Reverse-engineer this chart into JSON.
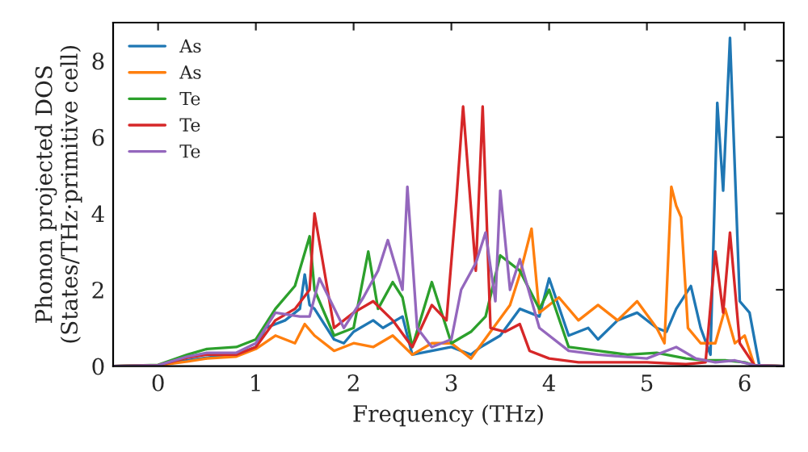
{
  "chart_data": {
    "type": "line",
    "xlabel": "Frequency (THz)",
    "ylabel": "Phonon projected DOS\n(States/THz·primitive cell)",
    "xlim": [
      -0.46,
      6.4
    ],
    "ylim": [
      0,
      9
    ],
    "xticks": [
      0,
      1,
      2,
      3,
      4,
      5,
      6
    ],
    "yticks": [
      0,
      2,
      4,
      6,
      8
    ],
    "legend": "top left",
    "grid": false,
    "series": [
      {
        "name": "As",
        "color": "#1f77b4",
        "x": [
          -0.46,
          0,
          0.3,
          0.5,
          0.8,
          1.0,
          1.1,
          1.3,
          1.45,
          1.5,
          1.55,
          1.6,
          1.8,
          1.9,
          2.0,
          2.2,
          2.3,
          2.5,
          2.6,
          2.8,
          3.0,
          3.2,
          3.3,
          3.5,
          3.7,
          3.9,
          4.0,
          4.2,
          4.4,
          4.5,
          4.7,
          4.9,
          5.1,
          5.2,
          5.3,
          5.45,
          5.55,
          5.65,
          5.72,
          5.78,
          5.85,
          5.95,
          6.05,
          6.15,
          6.4
        ],
        "values": [
          0,
          0.02,
          0.15,
          0.22,
          0.3,
          0.5,
          1.0,
          1.2,
          1.5,
          2.4,
          1.6,
          1.5,
          0.7,
          0.6,
          0.9,
          1.2,
          1.0,
          1.3,
          0.3,
          0.4,
          0.5,
          0.3,
          0.5,
          0.8,
          1.5,
          1.3,
          2.3,
          0.8,
          1.0,
          0.7,
          1.2,
          1.4,
          1.0,
          0.9,
          1.5,
          2.1,
          1.0,
          0.3,
          6.9,
          4.6,
          8.6,
          1.7,
          1.4,
          0.02,
          0
        ]
      },
      {
        "name": "As",
        "color": "#ff7f0e",
        "x": [
          -0.46,
          0,
          0.3,
          0.5,
          0.8,
          1.0,
          1.2,
          1.4,
          1.5,
          1.6,
          1.8,
          2.0,
          2.2,
          2.4,
          2.6,
          2.8,
          3.0,
          3.2,
          3.4,
          3.6,
          3.7,
          3.82,
          3.9,
          4.1,
          4.3,
          4.5,
          4.7,
          4.9,
          5.1,
          5.18,
          5.25,
          5.3,
          5.35,
          5.42,
          5.55,
          5.7,
          5.8,
          5.9,
          6.0,
          6.1,
          6.4
        ],
        "values": [
          0,
          0.02,
          0.12,
          0.2,
          0.25,
          0.45,
          0.8,
          0.6,
          1.1,
          0.8,
          0.4,
          0.6,
          0.5,
          0.8,
          0.3,
          0.6,
          0.6,
          0.2,
          0.9,
          1.6,
          2.4,
          3.6,
          1.4,
          1.8,
          1.2,
          1.6,
          1.2,
          1.7,
          1.0,
          0.6,
          4.7,
          4.2,
          3.9,
          1.0,
          0.6,
          0.6,
          1.5,
          0.6,
          0.8,
          0.02,
          0
        ]
      },
      {
        "name": "Te",
        "color": "#2ca02c",
        "x": [
          -0.46,
          0,
          0.3,
          0.5,
          0.8,
          1.0,
          1.2,
          1.4,
          1.55,
          1.6,
          1.8,
          2.0,
          2.15,
          2.25,
          2.4,
          2.5,
          2.6,
          2.8,
          3.0,
          3.2,
          3.35,
          3.5,
          3.7,
          3.9,
          4.0,
          4.2,
          4.5,
          4.8,
          5.1,
          5.4,
          5.6,
          5.8,
          6.0,
          6.1,
          6.4
        ],
        "values": [
          0,
          0.03,
          0.3,
          0.45,
          0.5,
          0.7,
          1.5,
          2.1,
          3.4,
          2.0,
          0.8,
          1.0,
          3.0,
          1.5,
          2.2,
          1.8,
          0.5,
          2.2,
          0.6,
          0.9,
          1.3,
          2.9,
          2.5,
          1.5,
          2.0,
          0.5,
          0.4,
          0.3,
          0.35,
          0.2,
          0.15,
          0.15,
          0.1,
          0.02,
          0
        ]
      },
      {
        "name": "Te",
        "color": "#d62728",
        "x": [
          -0.46,
          0,
          0.3,
          0.5,
          0.8,
          1.0,
          1.2,
          1.4,
          1.55,
          1.6,
          1.8,
          2.0,
          2.2,
          2.4,
          2.6,
          2.8,
          2.95,
          3.05,
          3.12,
          3.18,
          3.25,
          3.32,
          3.4,
          3.55,
          3.7,
          3.8,
          4.0,
          4.3,
          4.6,
          5.0,
          5.4,
          5.6,
          5.7,
          5.78,
          5.85,
          5.95,
          6.1,
          6.4
        ],
        "values": [
          0,
          0.02,
          0.22,
          0.3,
          0.3,
          0.5,
          1.2,
          1.5,
          2.0,
          4.0,
          1.0,
          1.4,
          1.7,
          1.2,
          0.5,
          1.6,
          1.2,
          4.3,
          6.8,
          4.8,
          2.5,
          6.8,
          1.0,
          0.9,
          1.1,
          0.4,
          0.2,
          0.1,
          0.1,
          0.1,
          0.05,
          0.1,
          3.0,
          1.4,
          3.5,
          0.6,
          0.02,
          0
        ]
      },
      {
        "name": "Te",
        "color": "#9467bd",
        "x": [
          -0.46,
          0,
          0.3,
          0.5,
          0.8,
          1.0,
          1.2,
          1.45,
          1.55,
          1.65,
          1.9,
          2.1,
          2.25,
          2.35,
          2.5,
          2.55,
          2.65,
          2.8,
          3.0,
          3.1,
          3.25,
          3.35,
          3.45,
          3.5,
          3.6,
          3.7,
          3.9,
          4.2,
          4.5,
          5.0,
          5.3,
          5.5,
          5.7,
          5.9,
          6.1,
          6.4
        ],
        "values": [
          0,
          0.02,
          0.25,
          0.35,
          0.35,
          0.6,
          1.4,
          1.3,
          1.3,
          2.3,
          1.0,
          1.8,
          2.5,
          3.3,
          2.0,
          4.7,
          1.0,
          0.5,
          0.7,
          2.0,
          2.7,
          3.5,
          1.7,
          4.6,
          2.0,
          2.8,
          1.0,
          0.4,
          0.3,
          0.2,
          0.5,
          0.2,
          0.1,
          0.15,
          0.02,
          0
        ]
      }
    ]
  }
}
